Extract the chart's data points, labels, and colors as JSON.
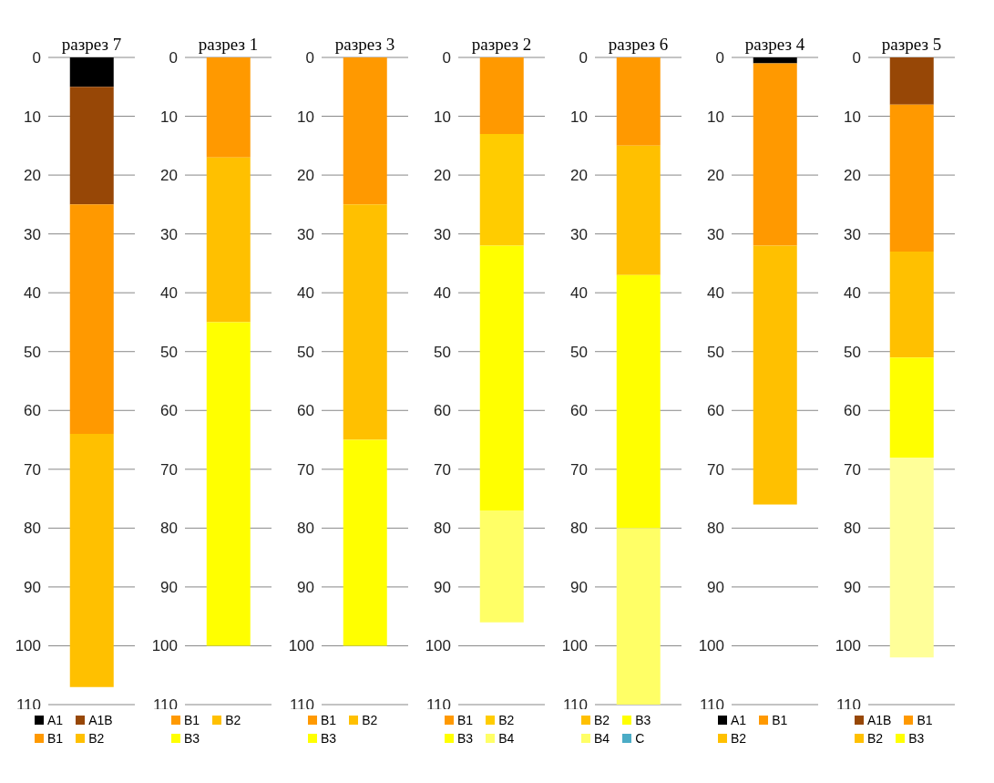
{
  "chart_data": [
    {
      "type": "bar",
      "stacked": true,
      "categories": [
        "разрез 7"
      ],
      "ylim": [
        110,
        0
      ],
      "yticks": [
        0,
        10,
        20,
        30,
        40,
        50,
        60,
        70,
        80,
        90,
        100,
        110
      ],
      "grid": "y",
      "legend": "bottom",
      "series": [
        {
          "name": "A1",
          "color": "#000000",
          "values": [
            5
          ]
        },
        {
          "name": "A1B",
          "color": "#974706",
          "values": [
            20
          ]
        },
        {
          "name": "B1",
          "color": "#ff9900",
          "values": [
            39
          ]
        },
        {
          "name": "B2",
          "color": "#ffc000",
          "values": [
            43
          ]
        }
      ]
    },
    {
      "type": "bar",
      "stacked": true,
      "categories": [
        "разрез 1"
      ],
      "ylim": [
        110,
        0
      ],
      "yticks": [
        0,
        10,
        20,
        30,
        40,
        50,
        60,
        70,
        80,
        90,
        100,
        110
      ],
      "grid": "y",
      "legend": "bottom",
      "series": [
        {
          "name": "B1",
          "color": "#ff9900",
          "values": [
            17
          ]
        },
        {
          "name": "B2",
          "color": "#ffc000",
          "values": [
            28
          ]
        },
        {
          "name": "B3",
          "color": "#ffff00",
          "values": [
            55
          ]
        }
      ]
    },
    {
      "type": "bar",
      "stacked": true,
      "categories": [
        "разрез 3"
      ],
      "ylim": [
        110,
        0
      ],
      "yticks": [
        0,
        10,
        20,
        30,
        40,
        50,
        60,
        70,
        80,
        90,
        100,
        110
      ],
      "grid": "y",
      "legend": "bottom",
      "series": [
        {
          "name": "B1",
          "color": "#ff9900",
          "values": [
            25
          ]
        },
        {
          "name": "B2",
          "color": "#ffc000",
          "values": [
            40
          ]
        },
        {
          "name": "B3",
          "color": "#ffff00",
          "values": [
            35
          ]
        }
      ]
    },
    {
      "type": "bar",
      "stacked": true,
      "categories": [
        "разрез 2"
      ],
      "ylim": [
        110,
        0
      ],
      "yticks": [
        0,
        10,
        20,
        30,
        40,
        50,
        60,
        70,
        80,
        90,
        100,
        110
      ],
      "grid": "y",
      "legend": "bottom",
      "series": [
        {
          "name": "B1",
          "color": "#ff9900",
          "values": [
            13
          ]
        },
        {
          "name": "B2",
          "color": "#ffcc00",
          "values": [
            19
          ]
        },
        {
          "name": "B3",
          "color": "#ffff00",
          "values": [
            45
          ]
        },
        {
          "name": "B4",
          "color": "#ffff66",
          "values": [
            19
          ]
        }
      ]
    },
    {
      "type": "bar",
      "stacked": true,
      "categories": [
        "разрез 6"
      ],
      "ylim": [
        110,
        0
      ],
      "yticks": [
        0,
        10,
        20,
        30,
        40,
        50,
        60,
        70,
        80,
        90,
        100,
        110
      ],
      "grid": "y",
      "legend": "bottom",
      "series": [
        {
          "color": "#ff9900",
          "values": [
            15
          ]
        },
        {
          "name": "B2",
          "color": "#ffc000",
          "values": [
            22
          ]
        },
        {
          "name": "B3",
          "color": "#ffff00",
          "values": [
            43
          ]
        },
        {
          "name": "B4",
          "color": "#ffff66",
          "values": [
            30
          ]
        },
        {
          "name": "C",
          "color": "#4bacc6",
          "values": [
            null
          ]
        }
      ]
    },
    {
      "type": "bar",
      "stacked": true,
      "categories": [
        "разрез 4"
      ],
      "ylim": [
        110,
        0
      ],
      "yticks": [
        0,
        10,
        20,
        30,
        40,
        50,
        60,
        70,
        80,
        90,
        100,
        110
      ],
      "grid": "y",
      "legend": "bottom",
      "series": [
        {
          "name": "A1",
          "color": "#000000",
          "values": [
            1
          ]
        },
        {
          "name": "B1",
          "color": "#ff9900",
          "values": [
            31
          ]
        },
        {
          "name": "B2",
          "color": "#ffc000",
          "values": [
            44
          ]
        }
      ]
    },
    {
      "type": "bar",
      "stacked": true,
      "categories": [
        "разрез 5"
      ],
      "ylim": [
        110,
        0
      ],
      "yticks": [
        0,
        10,
        20,
        30,
        40,
        50,
        60,
        70,
        80,
        90,
        100,
        110
      ],
      "grid": "y",
      "legend": "bottom",
      "series": [
        {
          "name": "A1B",
          "color": "#974706",
          "values": [
            8
          ]
        },
        {
          "name": "B1",
          "color": "#ff9900",
          "values": [
            25
          ]
        },
        {
          "name": "B2",
          "color": "#ffc000",
          "values": [
            18
          ]
        },
        {
          "name": "B3",
          "color": "#ffff00",
          "values": [
            17
          ]
        },
        {
          "color": "#ffff99",
          "values": [
            34
          ]
        }
      ]
    }
  ]
}
